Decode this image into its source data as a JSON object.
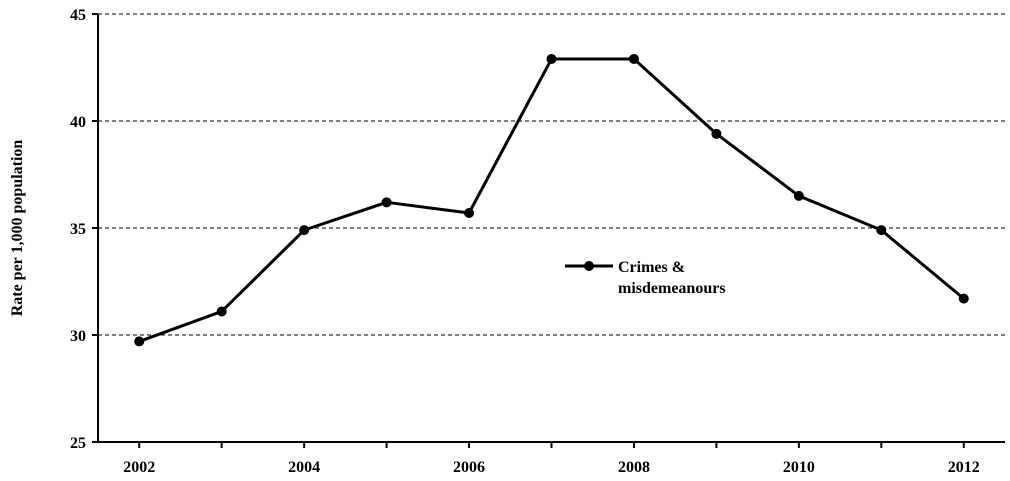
{
  "chart_data": {
    "type": "line",
    "title": "",
    "xlabel": "",
    "ylabel": "Rate per 1,000 population",
    "x": [
      2002,
      2003,
      2004,
      2005,
      2006,
      2007,
      2008,
      2009,
      2010,
      2011,
      2012
    ],
    "x_tick_labels": [
      "2002",
      "2004",
      "2006",
      "2008",
      "2010",
      "2012"
    ],
    "y_tick_labels": [
      "25",
      "30",
      "35",
      "40",
      "45"
    ],
    "ylim": [
      25,
      45
    ],
    "xlim": [
      2001.5,
      2012.5
    ],
    "grid": "horizontal dashed",
    "legend_placement": "center-right",
    "series": [
      {
        "name": "Crimes &\nmisdemeanours",
        "legend_lines": [
          "Crimes &",
          "misdemeanours"
        ],
        "color": "#000000",
        "marker": "circle",
        "values": [
          29.7,
          31.1,
          34.9,
          36.2,
          35.7,
          42.9,
          42.9,
          39.4,
          36.5,
          34.9,
          31.7
        ]
      }
    ]
  }
}
